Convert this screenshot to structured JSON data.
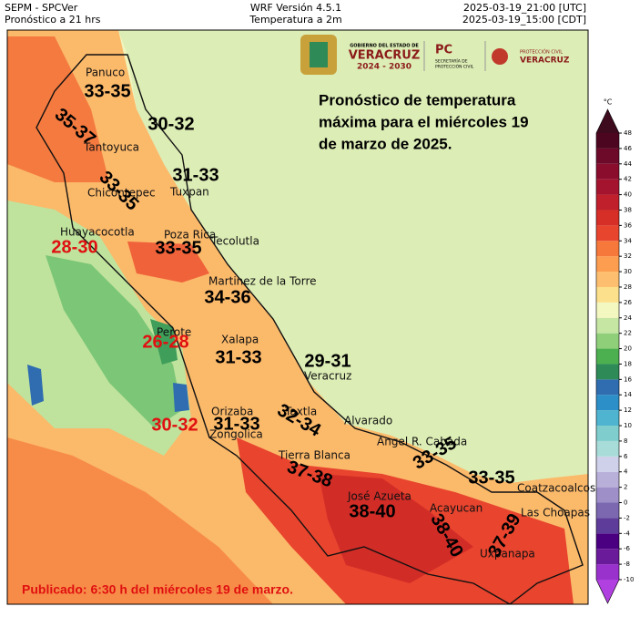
{
  "header": {
    "left": [
      "SEPM - SPCVer",
      "Pronóstico a 21 hrs"
    ],
    "center": [
      "WRF Versión 4.5.1",
      "Temperatura a 2m"
    ],
    "right": [
      "2025-03-19_21:00 [UTC]",
      "2025-03-19_15:00 [CDT]"
    ]
  },
  "logos": {
    "state": [
      "GOBIERNO DEL ESTADO DE",
      "VERACRUZ",
      "2024 - 2030"
    ],
    "pc": [
      "PC",
      "SECRETARÍA DE",
      "PROTECCIÓN CIVIL"
    ],
    "pc2": [
      "PROTECCIÓN CIVIL",
      "VERACRUZ"
    ]
  },
  "title": [
    "Pronóstico de temperatura",
    "máxima para el miércoles 19",
    "de marzo de 2025."
  ],
  "annotations": [
    {
      "text": "33-35",
      "color": "#000000"
    },
    {
      "text": "30-32",
      "color": "#000000"
    },
    {
      "text": "35-37",
      "color": "#000000"
    },
    {
      "text": "31-33",
      "color": "#000000"
    },
    {
      "text": "33-35",
      "color": "#000000"
    },
    {
      "text": "28-30",
      "color": "#e01010"
    },
    {
      "text": "33-35",
      "color": "#000000"
    },
    {
      "text": "34-36",
      "color": "#000000"
    },
    {
      "text": "26-28",
      "color": "#e01010"
    },
    {
      "text": "31-33",
      "color": "#000000"
    },
    {
      "text": "29-31",
      "color": "#000000"
    },
    {
      "text": "30-32",
      "color": "#e01010"
    },
    {
      "text": "31-33",
      "color": "#000000"
    },
    {
      "text": "32-34",
      "color": "#000000"
    },
    {
      "text": "37-38",
      "color": "#000000"
    },
    {
      "text": "38-40",
      "color": "#000000"
    },
    {
      "text": "33-35",
      "color": "#000000"
    },
    {
      "text": "33-35",
      "color": "#000000"
    },
    {
      "text": "38-40",
      "color": "#000000"
    },
    {
      "text": "37-39",
      "color": "#000000"
    }
  ],
  "places": [
    "Panuco",
    "Tantoyuca",
    "Chicontepec",
    "Tuxpan",
    "Huayacocotla",
    "Poza Rica",
    "Tecolutla",
    "Martinez de la Torre",
    "Perote",
    "Xalapa",
    "Veracruz",
    "Orizaba",
    "Zongolica",
    "Taxtla",
    "Alvarado",
    "Angel R. Cabada",
    "Tierra Blanca",
    "José Azueta",
    "Acayucan",
    "Coatzacoalcos",
    "Las Choapas",
    "Uxpanapa"
  ],
  "colorbar": {
    "unit": "°C",
    "ticks": [
      -10,
      -8,
      -6,
      -4,
      -2,
      0,
      2,
      4,
      6,
      8,
      10,
      12,
      14,
      16,
      18,
      20,
      22,
      24,
      26,
      28,
      30,
      32,
      34,
      36,
      38,
      40,
      42,
      44,
      46,
      48
    ],
    "colors": [
      "#9932cc",
      "#6a1b9a",
      "#4b0082",
      "#5e3c99",
      "#7b68b0",
      "#9e8fc8",
      "#b9b0da",
      "#cfd0ea",
      "#a8dcd8",
      "#7fcdcc",
      "#4fb4cf",
      "#2c8fc8",
      "#2f6db0",
      "#2e8b57",
      "#4caf50",
      "#8fcf7a",
      "#c6e6a3",
      "#f3f7c0",
      "#fde08b",
      "#fdbf6f",
      "#fc9d4f",
      "#f6783a",
      "#e8452e",
      "#d62f27",
      "#c0202b",
      "#a5142e",
      "#8b0d2e",
      "#6d0a2a",
      "#4d0620"
    ],
    "over_color": "#3d0a1e",
    "under_color": "#b040e0"
  },
  "footer": "Publicado: 6:30 h del miércoles 19 de marzo."
}
